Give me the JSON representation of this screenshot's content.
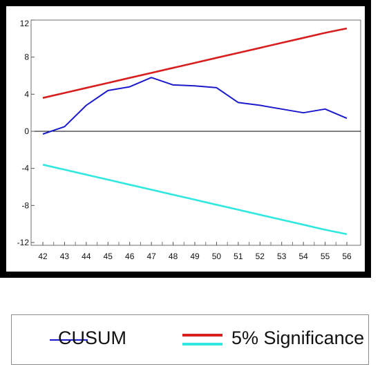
{
  "chart_data": {
    "type": "line",
    "x": [
      42,
      43,
      44,
      45,
      46,
      47,
      48,
      49,
      50,
      51,
      52,
      53,
      54,
      55,
      56
    ],
    "xticks": [
      "42",
      "43",
      "44",
      "45",
      "46",
      "47",
      "48",
      "49",
      "50",
      "51",
      "52",
      "53",
      "54",
      "55",
      "56"
    ],
    "yticks": [
      "12",
      "8",
      "4",
      "0",
      "-4",
      "-8",
      "-12"
    ],
    "ylim": [
      -12,
      12
    ],
    "grid": false,
    "series": [
      {
        "name": "CUSUM",
        "color": "#1a1acc",
        "values": [
          -0.3,
          0.5,
          2.8,
          4.4,
          4.8,
          5.8,
          5.0,
          4.9,
          4.7,
          3.1,
          2.8,
          2.4,
          2.0,
          2.4,
          1.4
        ]
      },
      {
        "name": "5% Significance",
        "color": "#d81e1e",
        "values": [
          3.6,
          4.14,
          4.68,
          5.22,
          5.76,
          6.3,
          6.84,
          7.38,
          7.92,
          8.46,
          9.0,
          9.54,
          10.08,
          10.62,
          11.1
        ]
      },
      {
        "name": "",
        "color": "#30e8e0",
        "values": [
          -3.6,
          -4.14,
          -4.68,
          -5.22,
          -5.76,
          -6.3,
          -6.84,
          -7.38,
          -7.92,
          -8.46,
          -9.0,
          -9.54,
          -10.08,
          -10.62,
          -11.1
        ]
      }
    ],
    "legend": [
      {
        "label": "CUSUM",
        "color": "#1a1acc"
      },
      {
        "label": "5% Significance",
        "colors": [
          "#d81e1e",
          "#30e8e0"
        ]
      }
    ],
    "legend_position": "bottom"
  }
}
